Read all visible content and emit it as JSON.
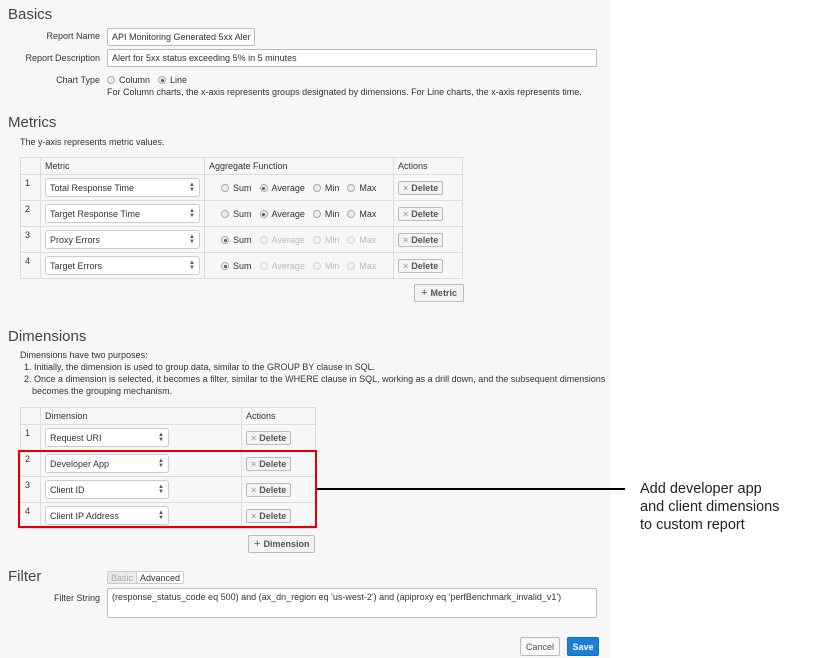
{
  "basics": {
    "title": "Basics",
    "report_name_label": "Report Name",
    "report_name_value": "API Monitoring Generated 5xx Aler",
    "report_description_label": "Report Description",
    "report_description_value": "Alert for 5xx status exceeding 5% in 5 minutes",
    "chart_type_label": "Chart Type",
    "chart_type_options": [
      "Column",
      "Line"
    ],
    "chart_type_selected": "Line",
    "chart_type_help": "For Column charts, the x-axis represents groups designated by dimensions. For Line charts, the x-axis represents time."
  },
  "metrics": {
    "title": "Metrics",
    "description": "The y-axis represents metric values.",
    "headers": [
      "",
      "Metric",
      "Aggregate Function",
      "Actions"
    ],
    "aggregate_options": [
      "Sum",
      "Average",
      "Min",
      "Max"
    ],
    "rows": [
      {
        "index": "1",
        "metric": "Total Response Time",
        "selected": "Average",
        "enabled": [
          "Sum",
          "Average",
          "Min",
          "Max"
        ]
      },
      {
        "index": "2",
        "metric": "Target Response Time",
        "selected": "Average",
        "enabled": [
          "Sum",
          "Average",
          "Min",
          "Max"
        ]
      },
      {
        "index": "3",
        "metric": "Proxy Errors",
        "selected": "Sum",
        "enabled": [
          "Sum"
        ]
      },
      {
        "index": "4",
        "metric": "Target Errors",
        "selected": "Sum",
        "enabled": [
          "Sum"
        ]
      }
    ],
    "delete_label": "Delete",
    "add_label": "Metric"
  },
  "dimensions": {
    "title": "Dimensions",
    "intro": "Dimensions have two purposes:",
    "points": [
      "1. Initially, the dimension is used to group data, similar to the GROUP BY clause in SQL.",
      "2. Once a dimension is selected, it becomes a filter, similar to the WHERE clause in SQL, working as a drill down, and the subsequent dimensions",
      "becomes the grouping mechanism."
    ],
    "headers": [
      "",
      "Dimension",
      "Actions"
    ],
    "rows": [
      {
        "index": "1",
        "dimension": "Request URI"
      },
      {
        "index": "2",
        "dimension": "Developer App"
      },
      {
        "index": "3",
        "dimension": "Client ID"
      },
      {
        "index": "4",
        "dimension": "Client IP Address"
      }
    ],
    "delete_label": "Delete",
    "add_label": "Dimension",
    "highlight_color": "#e00000"
  },
  "annotation": {
    "lines": [
      "Add developer app",
      "and client dimensions",
      "to custom report"
    ]
  },
  "filter": {
    "title": "Filter",
    "tabs": [
      "Basic",
      "Advanced"
    ],
    "active_tab": "Advanced",
    "filter_string_label": "Filter String",
    "filter_string_value": "(response_status_code eq 500) and (ax_dn_region eq 'us-west-2') and (apiproxy eq 'perfBenchmark_invalid_v1')"
  },
  "footer": {
    "cancel_label": "Cancel",
    "save_label": "Save",
    "save_color": "#1a7fd6"
  }
}
